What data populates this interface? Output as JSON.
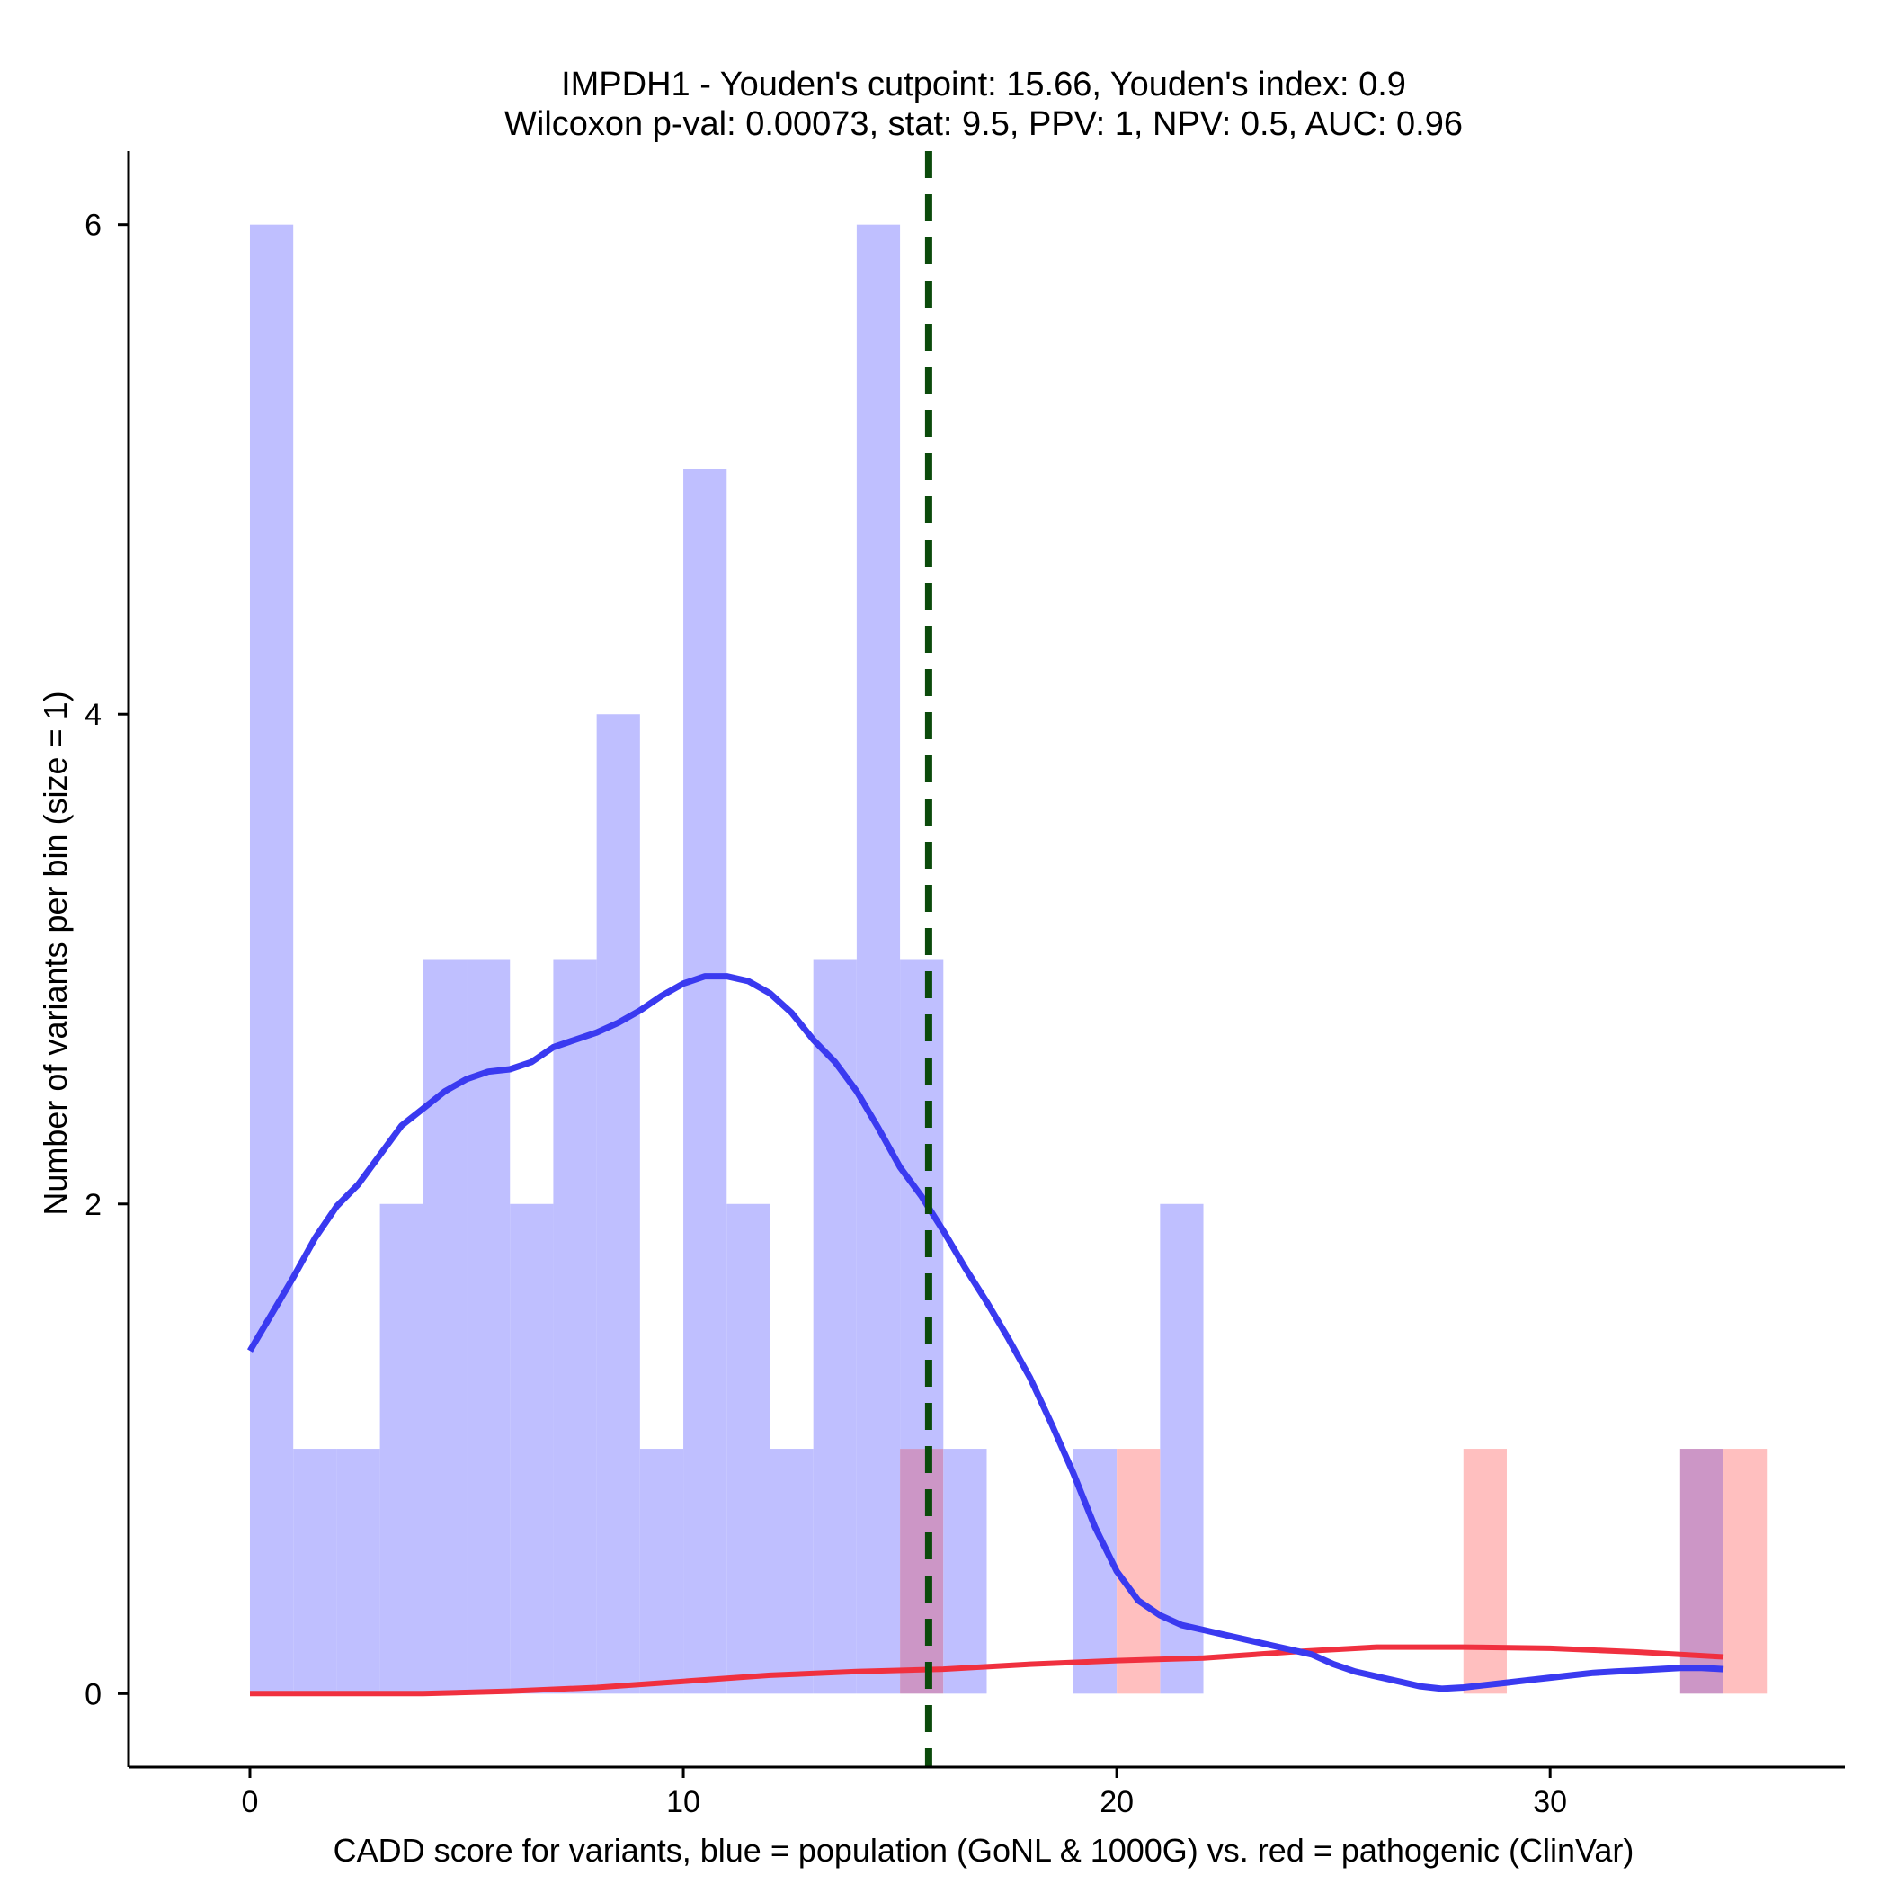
{
  "chart_data": {
    "type": "bar",
    "title": "IMPDH1 - Youden's cutpoint: 15.66, Youden's index: 0.9",
    "subtitle": "Wilcoxon p-val: 0.00073, stat: 9.5, PPV: 1, NPV: 0.5, AUC: 0.96",
    "xlabel": "CADD score for variants, blue = population (GoNL & 1000G) vs. red = pathogenic (ClinVar)",
    "ylabel": "Number of variants per bin (size = 1)",
    "xlim": [
      -2.8,
      36.8
    ],
    "ylim": [
      -0.3,
      6.3
    ],
    "x_ticks": [
      0,
      10,
      20,
      30
    ],
    "y_ticks": [
      0,
      2,
      4,
      6
    ],
    "bin_width": 1,
    "cutpoint": 15.66,
    "colors": {
      "population_bar": "#bfbfff",
      "pathogenic_bar": "#ffbfbf",
      "overlap_bar": "#cc96c6",
      "population_line": "#3a3af0",
      "pathogenic_line": "#f0303f",
      "cutpoint_line": "#0b4a0b"
    },
    "series": [
      {
        "name": "population (GoNL & 1000G)",
        "bins": [
          {
            "start": 0,
            "count": 6
          },
          {
            "start": 1,
            "count": 1
          },
          {
            "start": 2,
            "count": 1
          },
          {
            "start": 3,
            "count": 2
          },
          {
            "start": 4,
            "count": 3
          },
          {
            "start": 5,
            "count": 3
          },
          {
            "start": 6,
            "count": 2
          },
          {
            "start": 7,
            "count": 3
          },
          {
            "start": 8,
            "count": 4
          },
          {
            "start": 9,
            "count": 1
          },
          {
            "start": 10,
            "count": 5
          },
          {
            "start": 11,
            "count": 2
          },
          {
            "start": 12,
            "count": 1
          },
          {
            "start": 13,
            "count": 3
          },
          {
            "start": 14,
            "count": 6
          },
          {
            "start": 15,
            "count": 3
          },
          {
            "start": 16,
            "count": 1
          },
          {
            "start": 19,
            "count": 1
          },
          {
            "start": 21,
            "count": 2
          },
          {
            "start": 33,
            "count": 1
          }
        ],
        "density": [
          [
            0,
            1.4
          ],
          [
            0.5,
            1.55
          ],
          [
            1,
            1.7
          ],
          [
            1.5,
            1.86
          ],
          [
            2,
            1.99
          ],
          [
            2.5,
            2.08
          ],
          [
            3,
            2.2
          ],
          [
            3.5,
            2.32
          ],
          [
            4,
            2.39
          ],
          [
            4.5,
            2.46
          ],
          [
            5,
            2.51
          ],
          [
            5.5,
            2.54
          ],
          [
            6,
            2.55
          ],
          [
            6.5,
            2.58
          ],
          [
            7,
            2.64
          ],
          [
            7.5,
            2.67
          ],
          [
            8,
            2.7
          ],
          [
            8.5,
            2.74
          ],
          [
            9,
            2.79
          ],
          [
            9.5,
            2.85
          ],
          [
            10,
            2.9
          ],
          [
            10.5,
            2.93
          ],
          [
            11,
            2.93
          ],
          [
            11.5,
            2.91
          ],
          [
            12,
            2.86
          ],
          [
            12.5,
            2.78
          ],
          [
            13,
            2.67
          ],
          [
            13.5,
            2.58
          ],
          [
            14,
            2.46
          ],
          [
            14.5,
            2.31
          ],
          [
            15,
            2.15
          ],
          [
            15.5,
            2.03
          ],
          [
            16,
            1.89
          ],
          [
            16.5,
            1.74
          ],
          [
            17,
            1.6
          ],
          [
            17.5,
            1.45
          ],
          [
            18,
            1.29
          ],
          [
            18.5,
            1.1
          ],
          [
            19,
            0.9
          ],
          [
            19.5,
            0.68
          ],
          [
            20,
            0.5
          ],
          [
            20.5,
            0.38
          ],
          [
            21,
            0.32
          ],
          [
            21.5,
            0.28
          ],
          [
            22,
            0.26
          ],
          [
            22.5,
            0.24
          ],
          [
            23,
            0.22
          ],
          [
            23.5,
            0.2
          ],
          [
            24,
            0.18
          ],
          [
            24.5,
            0.16
          ],
          [
            25,
            0.12
          ],
          [
            25.5,
            0.09
          ],
          [
            26,
            0.07
          ],
          [
            26.5,
            0.05
          ],
          [
            27,
            0.03
          ],
          [
            27.5,
            0.02
          ],
          [
            28,
            0.025
          ],
          [
            28.5,
            0.035
          ],
          [
            29,
            0.045
          ],
          [
            29.5,
            0.055
          ],
          [
            30,
            0.065
          ],
          [
            30.5,
            0.075
          ],
          [
            31,
            0.085
          ],
          [
            31.5,
            0.09
          ],
          [
            32,
            0.095
          ],
          [
            32.5,
            0.1
          ],
          [
            33,
            0.105
          ],
          [
            33.5,
            0.105
          ],
          [
            34,
            0.1
          ]
        ]
      },
      {
        "name": "pathogenic (ClinVar)",
        "bins": [
          {
            "start": 15,
            "count": 1
          },
          {
            "start": 20,
            "count": 1
          },
          {
            "start": 28,
            "count": 1
          },
          {
            "start": 33,
            "count": 1
          },
          {
            "start": 34,
            "count": 1
          }
        ],
        "density": [
          [
            0,
            0
          ],
          [
            2,
            0
          ],
          [
            4,
            0
          ],
          [
            6,
            0.01
          ],
          [
            8,
            0.025
          ],
          [
            10,
            0.05
          ],
          [
            12,
            0.075
          ],
          [
            14,
            0.09
          ],
          [
            16,
            0.1
          ],
          [
            18,
            0.12
          ],
          [
            20,
            0.135
          ],
          [
            22,
            0.145
          ],
          [
            24,
            0.17
          ],
          [
            26,
            0.19
          ],
          [
            28,
            0.19
          ],
          [
            30,
            0.185
          ],
          [
            32,
            0.17
          ],
          [
            34,
            0.15
          ]
        ]
      }
    ]
  }
}
